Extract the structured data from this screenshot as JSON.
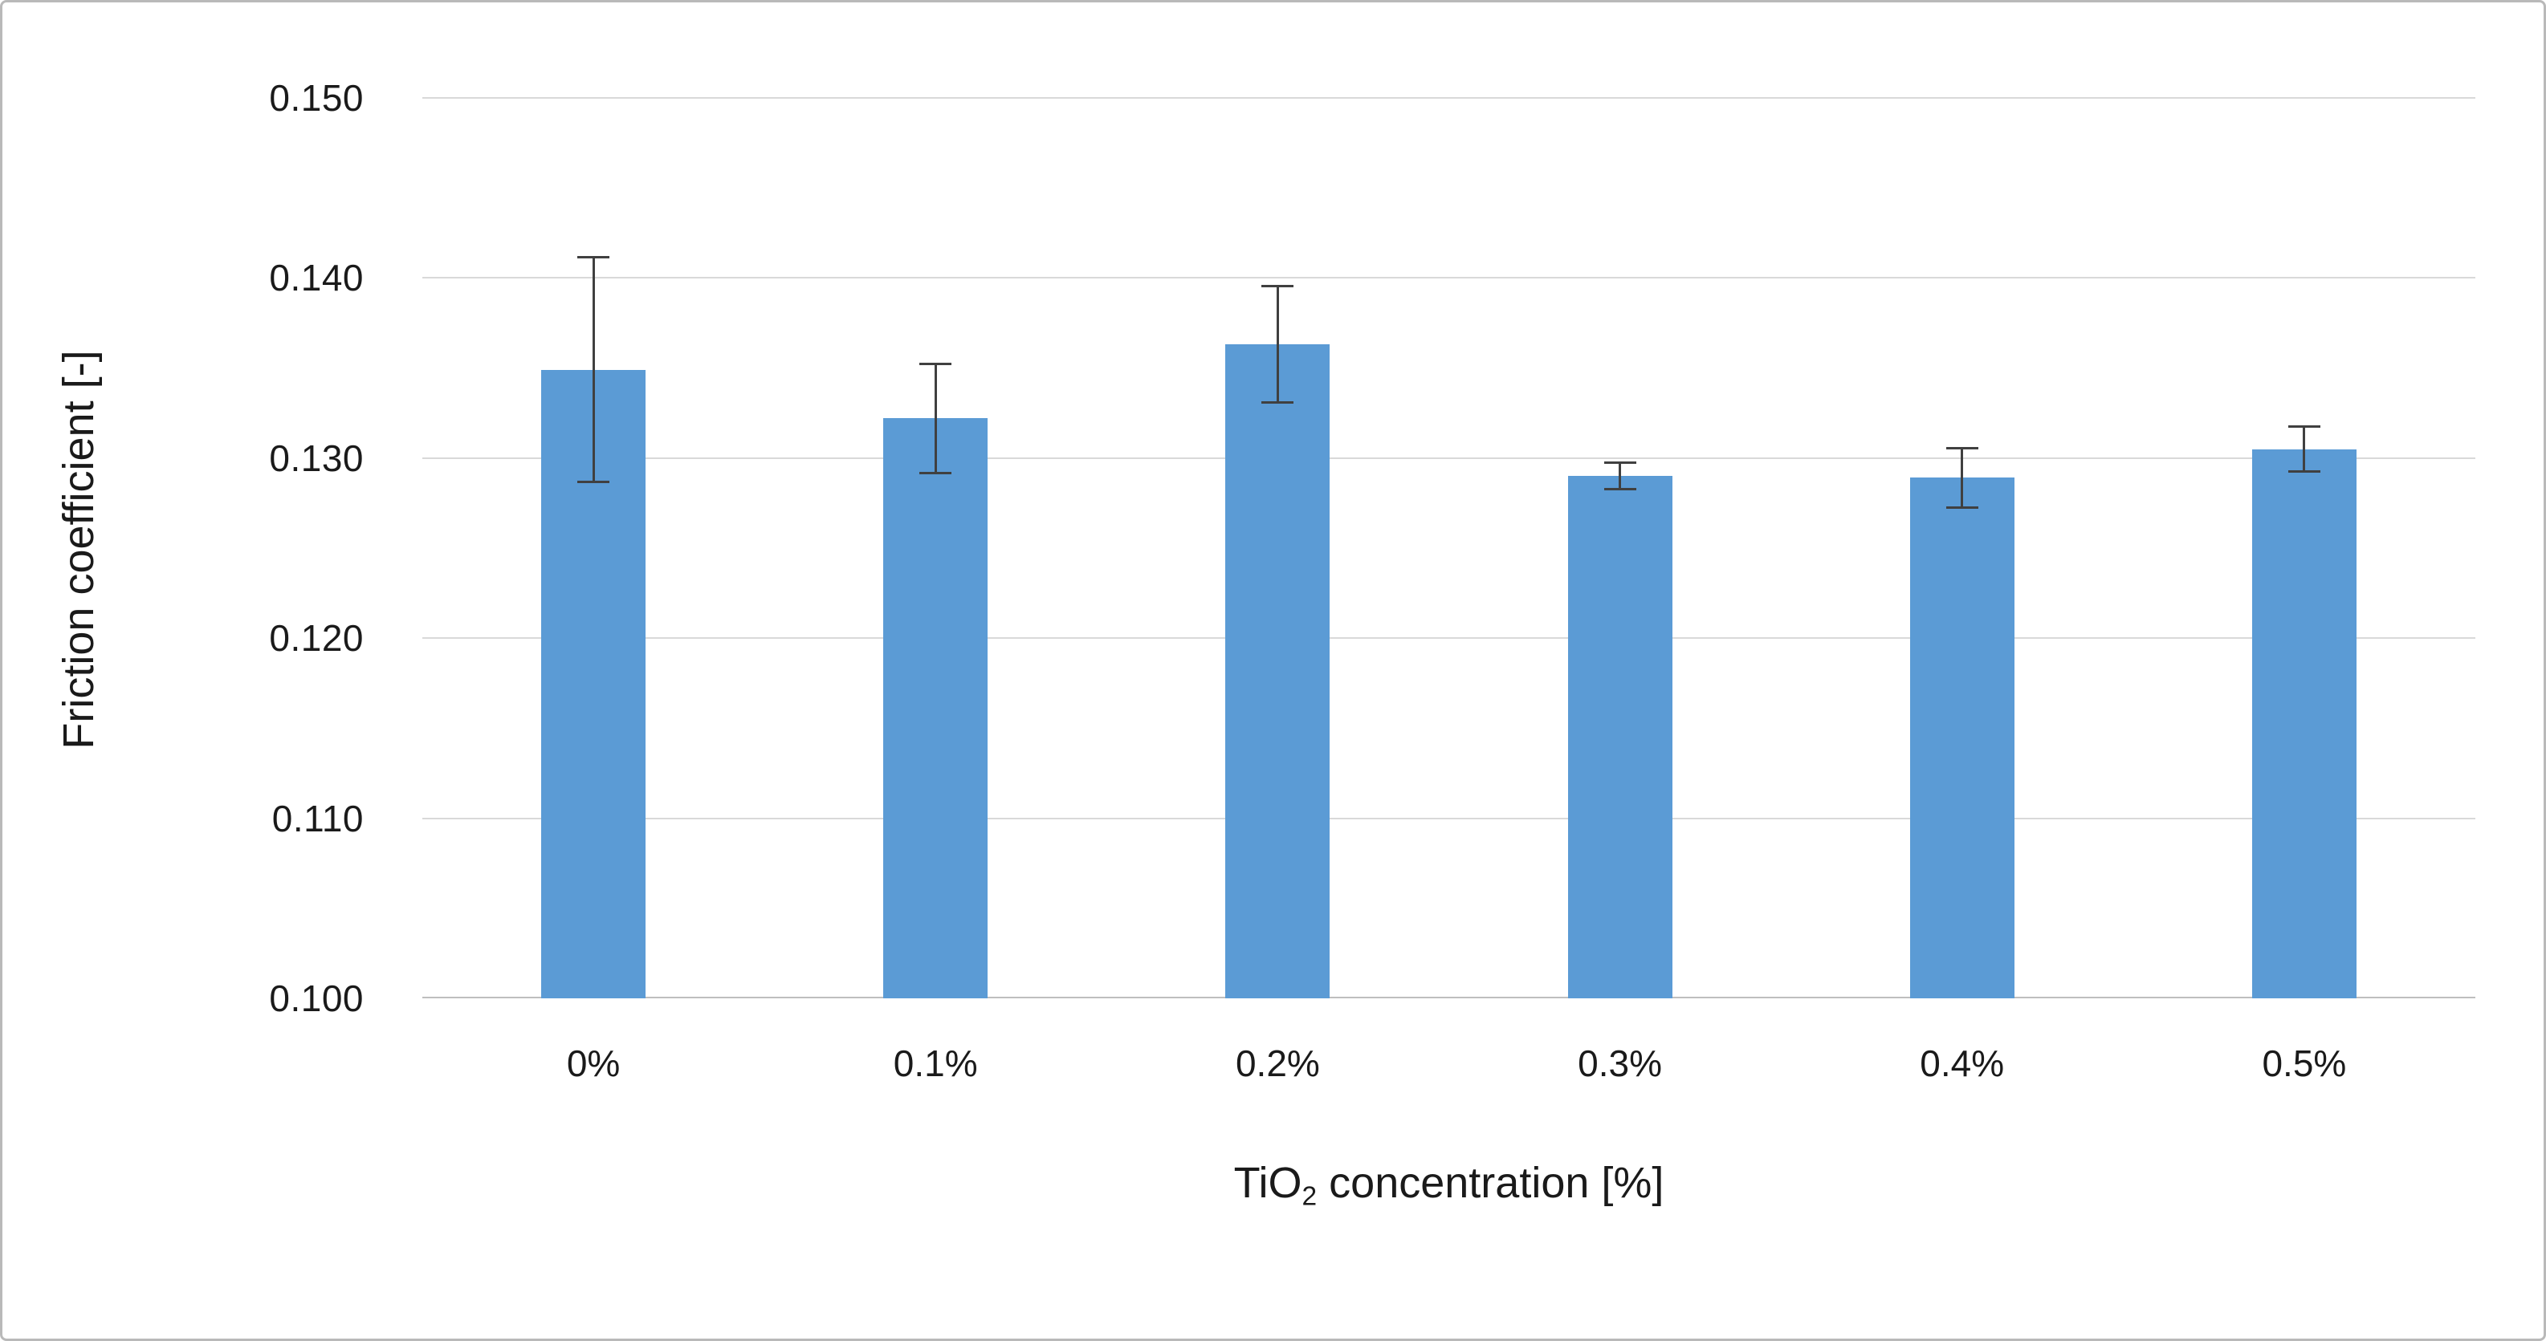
{
  "figure": {
    "background": "#ffffff",
    "border_color": "#b9b9b9"
  },
  "chart_data": {
    "type": "bar",
    "title": "",
    "categories": [
      "0%",
      "0.1%",
      "0.2%",
      "0.3%",
      "0.4%",
      "0.5%"
    ],
    "values": [
      0.1349,
      0.1322,
      0.1363,
      0.129,
      0.1289,
      0.1305
    ],
    "error_bars": [
      0.0063,
      0.0031,
      0.0033,
      0.0008,
      0.0017,
      0.0013
    ],
    "xlabel": "TiO2 concentration [%]",
    "xlabel_parts": {
      "prefix": "TiO",
      "subscript": "2",
      "suffix": " concentration [%]"
    },
    "ylabel": "Friction coefficient [-]",
    "ylim": [
      0.1,
      0.15
    ],
    "ytick_step": 0.01,
    "yticks": [
      "0.150",
      "0.140",
      "0.130",
      "0.120",
      "0.110",
      "0.100"
    ],
    "grid": "horizontal",
    "legend": "none",
    "bar_color": "#5B9BD5",
    "error_bar_color": "#404040",
    "gridline_color": "#d9d9d9",
    "axis_line_color": "#bfbfbf",
    "text_color": "#1a1a1a"
  }
}
